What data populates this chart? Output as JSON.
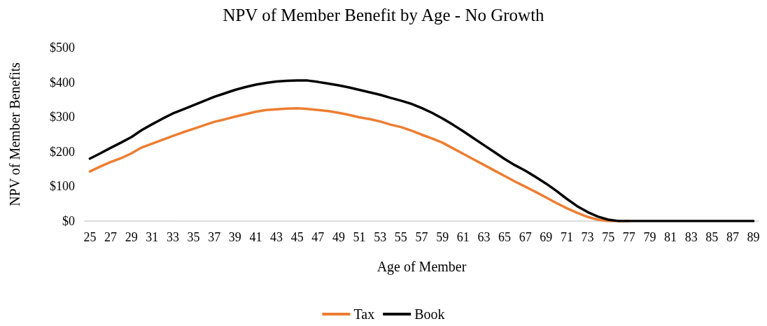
{
  "chart_data": {
    "type": "line",
    "title": "NPV of Member Benefit by Age - No Growth",
    "xlabel": "Age of Member",
    "ylabel": "NPV of Member Benefits",
    "categories": [
      "25",
      null,
      "27",
      null,
      "29",
      null,
      "31",
      null,
      "33",
      null,
      "35",
      null,
      "37",
      null,
      "39",
      null,
      "41",
      null,
      "43",
      null,
      "45",
      null,
      "47",
      null,
      "49",
      null,
      "51",
      null,
      "53",
      null,
      "55",
      null,
      "57",
      null,
      "59",
      null,
      "61",
      null,
      "63",
      null,
      "65",
      null,
      "67",
      null,
      "69",
      null,
      "71",
      null,
      "73",
      null,
      "75",
      null,
      "77",
      null,
      "79",
      null,
      "81",
      null,
      "83",
      null,
      "85",
      null,
      "87",
      null,
      "89"
    ],
    "series": [
      {
        "name": "Tax",
        "color": "#ed7d31",
        "values": [
          143,
          157,
          170,
          181,
          195,
          212,
          223,
          234,
          245,
          256,
          266,
          276,
          286,
          293,
          301,
          308,
          315,
          320,
          322,
          324,
          325,
          323,
          320,
          317,
          312,
          306,
          299,
          294,
          287,
          278,
          271,
          261,
          249,
          238,
          226,
          210,
          194,
          178,
          162,
          146,
          130,
          114,
          99,
          84,
          68,
          52,
          37,
          24,
          12,
          4,
          0,
          0,
          0,
          null,
          null,
          null,
          null,
          null,
          null,
          null,
          null,
          null,
          null,
          null,
          null
        ]
      },
      {
        "name": "Book",
        "color": "#000000",
        "values": [
          180,
          195,
          211,
          226,
          242,
          262,
          279,
          295,
          310,
          322,
          334,
          346,
          358,
          368,
          378,
          386,
          393,
          398,
          402,
          404,
          405,
          405,
          401,
          396,
          391,
          385,
          378,
          371,
          364,
          355,
          347,
          338,
          326,
          312,
          296,
          278,
          259,
          239,
          219,
          199,
          179,
          161,
          145,
          127,
          108,
          87,
          64,
          43,
          26,
          13,
          4,
          0,
          0,
          0,
          0,
          0,
          0,
          0,
          0,
          0,
          0,
          0,
          0,
          0,
          0
        ]
      }
    ],
    "ylim": [
      0,
      500
    ],
    "yticks": [
      {
        "value": 0,
        "label": "$0"
      },
      {
        "value": 100,
        "label": "$100"
      },
      {
        "value": 200,
        "label": "$200"
      },
      {
        "value": 300,
        "label": "$300"
      },
      {
        "value": 400,
        "label": "$400"
      },
      {
        "value": 500,
        "label": "$500"
      }
    ],
    "grid": false,
    "legend": "bottom",
    "marker": "none",
    "line_style": "solid"
  }
}
